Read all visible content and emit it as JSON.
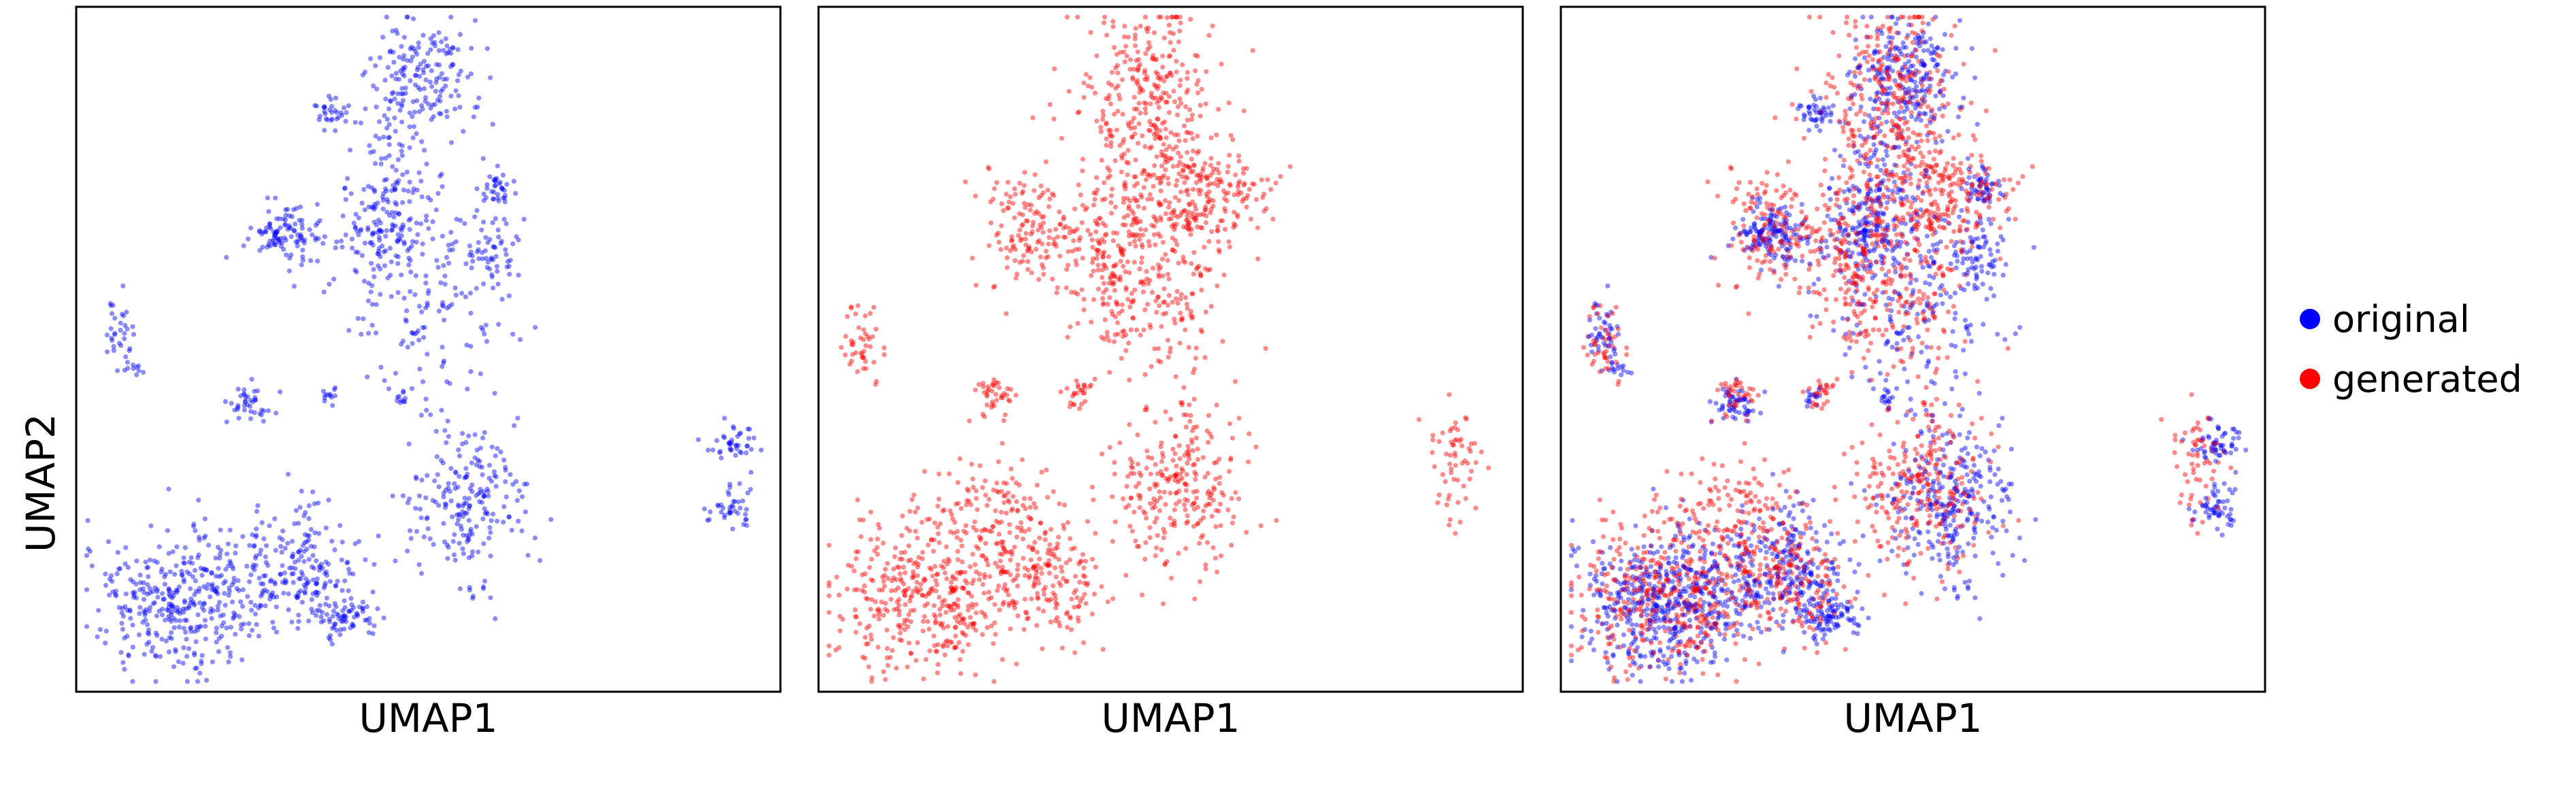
{
  "chart_data": [
    {
      "type": "scatter",
      "xlabel": "UMAP1",
      "ylabel": "UMAP2",
      "series_shown": [
        "original"
      ]
    },
    {
      "type": "scatter",
      "xlabel": "UMAP1",
      "ylabel": "",
      "series_shown": [
        "generated"
      ]
    },
    {
      "type": "scatter",
      "xlabel": "UMAP1",
      "ylabel": "",
      "series_shown": [
        "original",
        "generated"
      ]
    }
  ],
  "axes_ticks_visible": false,
  "legend": {
    "placement": "right",
    "items": [
      {
        "label": "original",
        "color": "#0000ff"
      },
      {
        "label": "generated",
        "color": "#ff0000"
      }
    ]
  },
  "marker_opacity": 0.45
}
